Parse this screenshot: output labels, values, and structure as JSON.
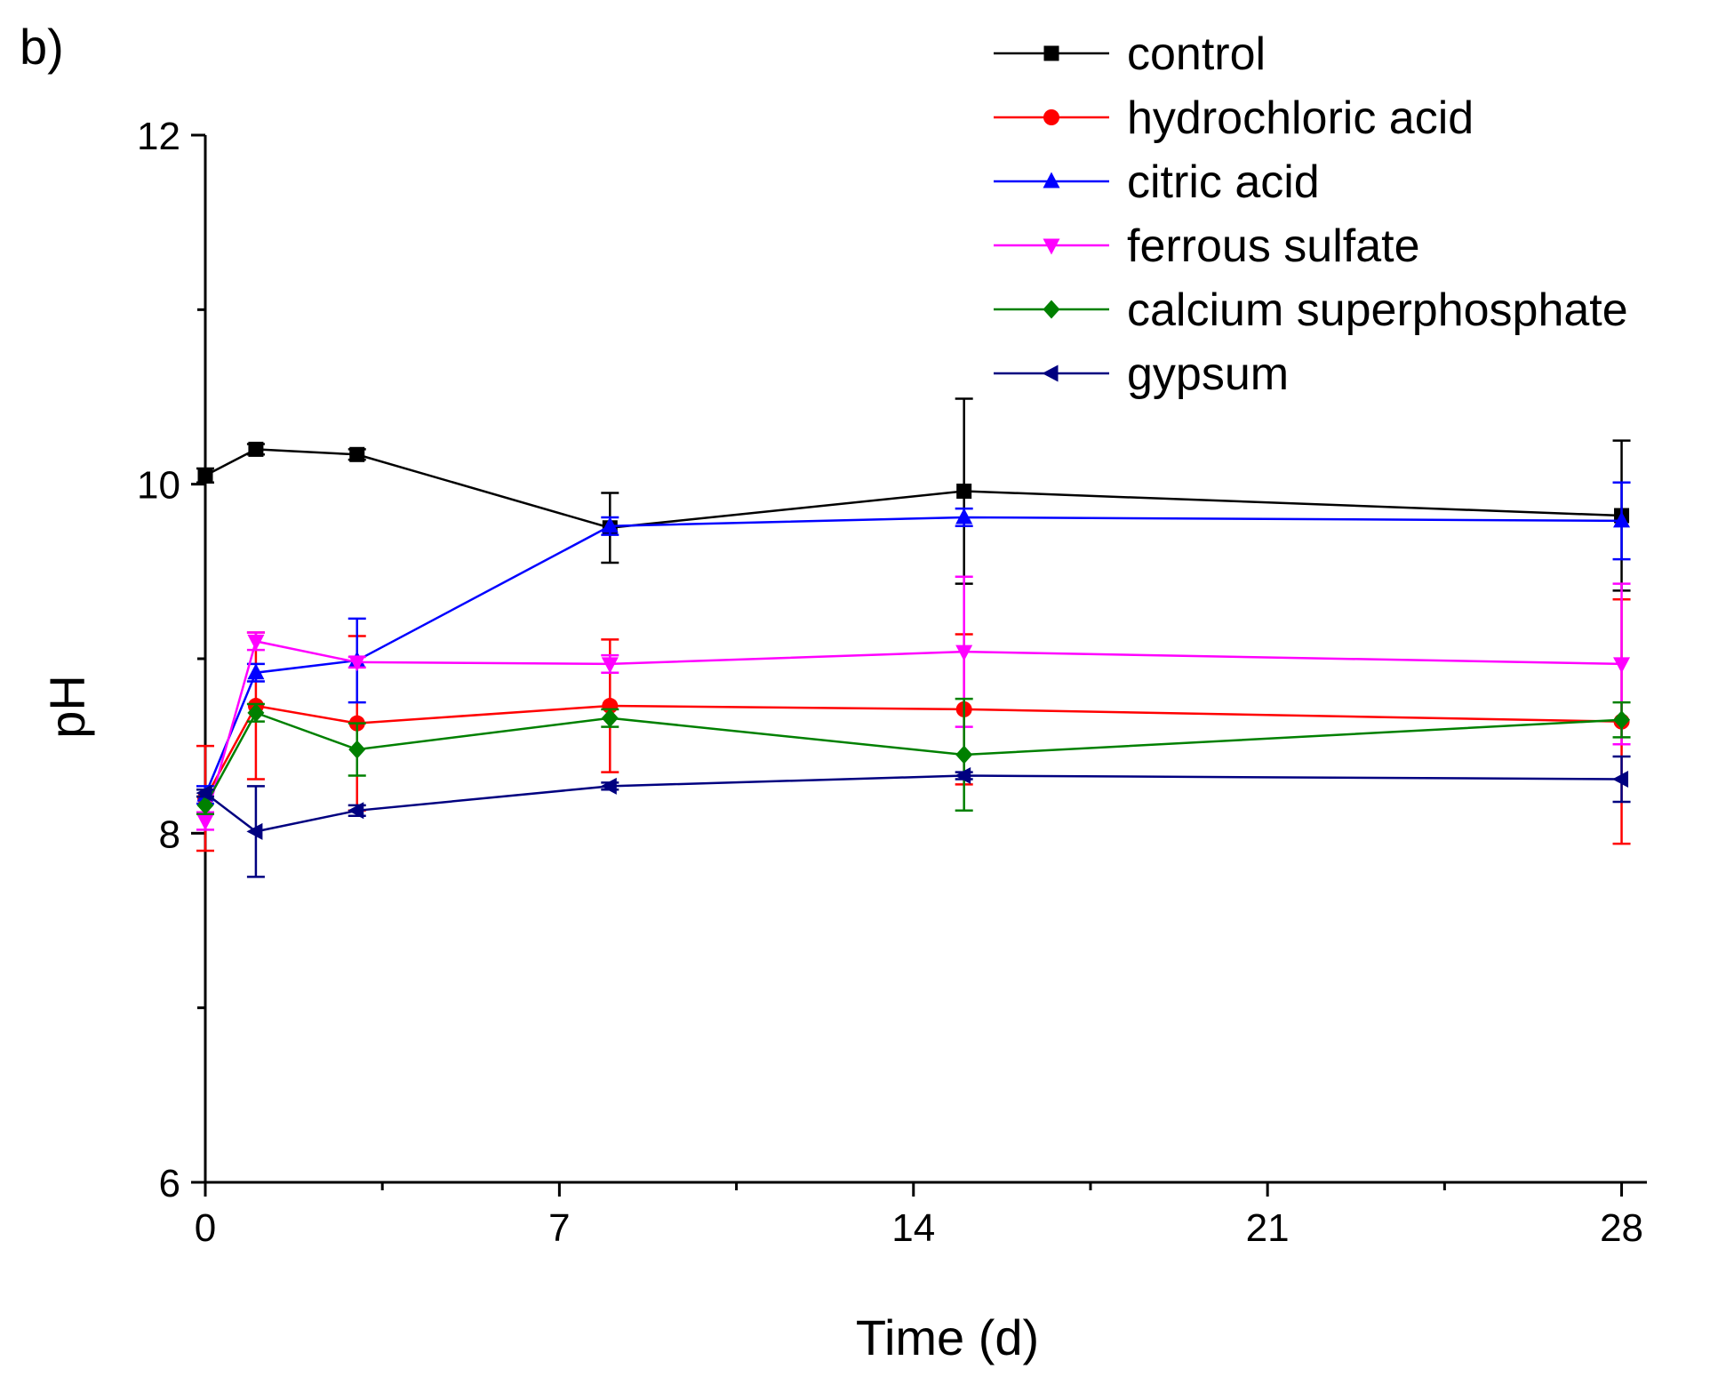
{
  "panel_label": "b)",
  "chart_data": {
    "type": "line",
    "xlabel": "Time (d)",
    "ylabel": "pH",
    "xlim": [
      0,
      28.5
    ],
    "ylim": [
      6,
      12
    ],
    "xticks": [
      0,
      7,
      14,
      21,
      28
    ],
    "xticks_minor": [
      3.5,
      10.5,
      17.5,
      24.5
    ],
    "yticks": [
      6,
      8,
      10,
      12
    ],
    "yticks_minor": [
      7,
      9,
      11
    ],
    "legend_position": "top-right",
    "grid": false,
    "x": [
      0,
      1,
      3,
      8,
      15,
      28
    ],
    "series": [
      {
        "name": "control",
        "color": "#000000",
        "marker": "square",
        "values": [
          10.05,
          10.2,
          10.17,
          9.75,
          9.96,
          9.82
        ],
        "errors": [
          0.04,
          0.03,
          0.03,
          0.2,
          0.53,
          0.43
        ]
      },
      {
        "name": "hydrochloric acid",
        "color": "#ff0000",
        "marker": "circle",
        "values": [
          8.2,
          8.73,
          8.63,
          8.73,
          8.71,
          8.64
        ],
        "errors": [
          0.3,
          0.42,
          0.5,
          0.38,
          0.43,
          0.7
        ]
      },
      {
        "name": "citric acid",
        "color": "#0000ff",
        "marker": "triangle-up",
        "values": [
          8.22,
          8.92,
          8.99,
          9.76,
          9.81,
          9.79
        ],
        "errors": [
          0.05,
          0.05,
          0.24,
          0.05,
          0.05,
          0.22
        ]
      },
      {
        "name": "ferrous sulfate",
        "color": "#ff00ff",
        "marker": "triangle-down",
        "values": [
          8.07,
          9.1,
          8.98,
          8.97,
          9.04,
          8.97
        ],
        "errors": [
          0.05,
          0.05,
          0.03,
          0.05,
          0.43,
          0.46
        ]
      },
      {
        "name": "calcium superphosphate",
        "color": "#008000",
        "marker": "diamond",
        "values": [
          8.16,
          8.69,
          8.48,
          8.66,
          8.45,
          8.65
        ],
        "errors": [
          0.05,
          0.05,
          0.15,
          0.05,
          0.32,
          0.1
        ]
      },
      {
        "name": "gypsum",
        "color": "#000080",
        "marker": "triangle-left",
        "values": [
          8.23,
          8.01,
          8.13,
          8.27,
          8.33,
          8.31
        ],
        "errors": [
          0.02,
          0.26,
          0.03,
          0.02,
          0.02,
          0.13
        ]
      }
    ]
  }
}
